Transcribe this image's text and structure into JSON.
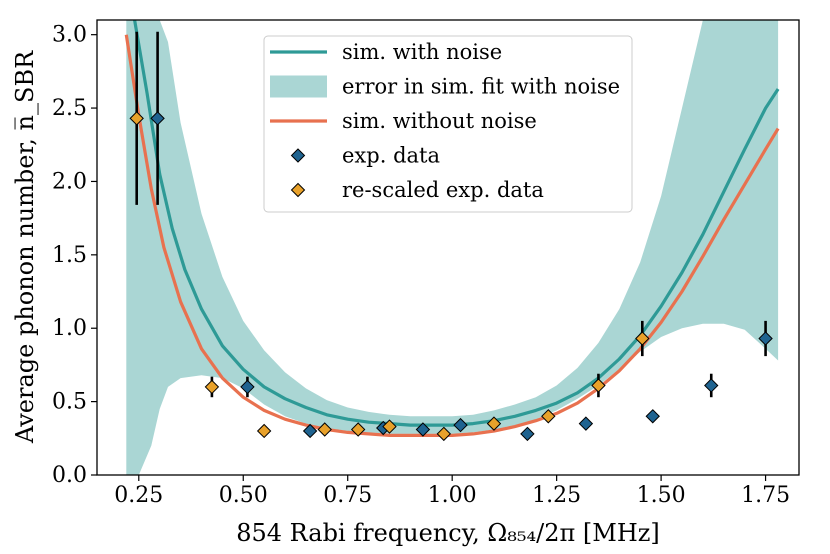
{
  "chart_data": {
    "type": "line",
    "title": "",
    "xlabel": "854 Rabi frequency, Ω₈₅₄/2π [MHz]",
    "ylabel": "Average phonon number, n̅_SBR",
    "xlim": [
      0.15,
      1.83
    ],
    "ylim": [
      0.0,
      3.1
    ],
    "xticks": [
      "0.25",
      "0.50",
      "0.75",
      "1.00",
      "1.25",
      "1.50",
      "1.75"
    ],
    "xtick_values": [
      0.25,
      0.5,
      0.75,
      1.0,
      1.25,
      1.5,
      1.75
    ],
    "yticks": [
      "0.0",
      "0.5",
      "1.0",
      "1.5",
      "2.0",
      "2.5",
      "3.0"
    ],
    "ytick_values": [
      0.0,
      0.5,
      1.0,
      1.5,
      2.0,
      2.5,
      3.0
    ],
    "grid": false,
    "legend_position": "top-center",
    "colors": {
      "sim_noise": "#2e9a96",
      "band": "#aad6d4",
      "sim_no_noise": "#e8714f",
      "exp": "#1f6390",
      "rescaled": "#e8a12a"
    },
    "legend": [
      {
        "label": "sim. with noise",
        "kind": "line",
        "series": "sim_noise"
      },
      {
        "label": "error in sim. fit with noise",
        "kind": "patch",
        "series": "band"
      },
      {
        "label": "sim. without noise",
        "kind": "line",
        "series": "sim_no_noise"
      },
      {
        "label": "exp. data",
        "kind": "marker",
        "series": "exp"
      },
      {
        "label": "re-scaled exp. data",
        "kind": "marker",
        "series": "rescaled"
      }
    ],
    "series": [
      {
        "name": "sim. with noise",
        "key": "sim_noise",
        "kind": "line",
        "x": [
          0.24,
          0.27,
          0.3,
          0.33,
          0.36,
          0.4,
          0.45,
          0.5,
          0.55,
          0.6,
          0.65,
          0.7,
          0.75,
          0.8,
          0.85,
          0.9,
          0.95,
          1.0,
          1.05,
          1.1,
          1.15,
          1.2,
          1.25,
          1.3,
          1.35,
          1.4,
          1.45,
          1.5,
          1.55,
          1.6,
          1.65,
          1.7,
          1.75,
          1.78
        ],
        "y": [
          3.1,
          2.6,
          2.05,
          1.68,
          1.4,
          1.13,
          0.88,
          0.72,
          0.6,
          0.52,
          0.46,
          0.41,
          0.38,
          0.36,
          0.35,
          0.34,
          0.34,
          0.34,
          0.35,
          0.37,
          0.4,
          0.44,
          0.49,
          0.56,
          0.66,
          0.79,
          0.95,
          1.15,
          1.38,
          1.64,
          1.93,
          2.22,
          2.5,
          2.63
        ]
      },
      {
        "name": "error in sim. fit with noise",
        "key": "band",
        "kind": "band",
        "x": [
          0.22,
          0.25,
          0.28,
          0.3,
          0.32,
          0.35,
          0.4,
          0.45,
          0.5,
          0.55,
          0.6,
          0.65,
          0.7,
          0.75,
          0.8,
          0.85,
          0.9,
          0.95,
          1.0,
          1.05,
          1.1,
          1.15,
          1.2,
          1.25,
          1.3,
          1.35,
          1.4,
          1.45,
          1.5,
          1.55,
          1.6,
          1.65,
          1.7,
          1.75,
          1.78
        ],
        "upper": [
          3.1,
          3.1,
          3.1,
          3.1,
          2.95,
          2.4,
          1.78,
          1.35,
          1.05,
          0.85,
          0.7,
          0.59,
          0.51,
          0.46,
          0.43,
          0.41,
          0.4,
          0.4,
          0.4,
          0.41,
          0.44,
          0.48,
          0.53,
          0.61,
          0.73,
          0.9,
          1.13,
          1.45,
          1.9,
          2.5,
          3.1,
          3.1,
          3.1,
          3.1,
          3.1
        ],
        "lower": [
          0.0,
          0.0,
          0.2,
          0.45,
          0.6,
          0.66,
          0.68,
          0.66,
          0.59,
          0.48,
          0.4,
          0.35,
          0.32,
          0.3,
          0.29,
          0.28,
          0.28,
          0.28,
          0.28,
          0.29,
          0.31,
          0.34,
          0.38,
          0.44,
          0.52,
          0.61,
          0.72,
          0.84,
          0.94,
          1.0,
          1.03,
          1.03,
          0.99,
          0.86,
          0.78
        ]
      },
      {
        "name": "sim. without noise",
        "key": "sim_no_noise",
        "kind": "line",
        "x": [
          0.22,
          0.25,
          0.28,
          0.31,
          0.35,
          0.4,
          0.45,
          0.5,
          0.55,
          0.6,
          0.65,
          0.7,
          0.75,
          0.8,
          0.85,
          0.9,
          0.95,
          1.0,
          1.05,
          1.1,
          1.15,
          1.2,
          1.25,
          1.3,
          1.35,
          1.4,
          1.45,
          1.5,
          1.55,
          1.6,
          1.65,
          1.7,
          1.75,
          1.78
        ],
        "y": [
          3.0,
          2.45,
          1.95,
          1.55,
          1.18,
          0.86,
          0.66,
          0.53,
          0.44,
          0.38,
          0.34,
          0.31,
          0.29,
          0.28,
          0.27,
          0.27,
          0.27,
          0.27,
          0.28,
          0.3,
          0.33,
          0.37,
          0.42,
          0.49,
          0.59,
          0.71,
          0.86,
          1.04,
          1.25,
          1.49,
          1.74,
          1.98,
          2.22,
          2.36
        ]
      },
      {
        "name": "exp. data",
        "key": "exp",
        "kind": "scatter",
        "points": [
          {
            "x": 0.295,
            "y": 2.43,
            "err": 0.59
          },
          {
            "x": 0.51,
            "y": 0.6,
            "err": 0.07
          },
          {
            "x": 0.66,
            "y": 0.3,
            "err": 0.03
          },
          {
            "x": 0.835,
            "y": 0.32,
            "err": 0.03
          },
          {
            "x": 0.93,
            "y": 0.31,
            "err": 0.03
          },
          {
            "x": 1.02,
            "y": 0.34,
            "err": 0.03
          },
          {
            "x": 1.18,
            "y": 0.28,
            "err": 0.03
          },
          {
            "x": 1.32,
            "y": 0.35,
            "err": 0.03
          },
          {
            "x": 1.48,
            "y": 0.4,
            "err": 0.03
          },
          {
            "x": 1.62,
            "y": 0.61,
            "err": 0.08
          },
          {
            "x": 1.75,
            "y": 0.93,
            "err": 0.12
          }
        ]
      },
      {
        "name": "re-scaled exp. data",
        "key": "rescaled",
        "kind": "scatter",
        "points": [
          {
            "x": 0.245,
            "y": 2.43,
            "err": 0.59
          },
          {
            "x": 0.425,
            "y": 0.6,
            "err": 0.07
          },
          {
            "x": 0.55,
            "y": 0.3,
            "err": 0.03
          },
          {
            "x": 0.695,
            "y": 0.31,
            "err": 0.03
          },
          {
            "x": 0.775,
            "y": 0.31,
            "err": 0.03
          },
          {
            "x": 0.85,
            "y": 0.33,
            "err": 0.03
          },
          {
            "x": 0.98,
            "y": 0.28,
            "err": 0.03
          },
          {
            "x": 1.1,
            "y": 0.35,
            "err": 0.03
          },
          {
            "x": 1.23,
            "y": 0.4,
            "err": 0.03
          },
          {
            "x": 1.35,
            "y": 0.61,
            "err": 0.08
          },
          {
            "x": 1.455,
            "y": 0.93,
            "err": 0.12
          }
        ]
      }
    ]
  }
}
